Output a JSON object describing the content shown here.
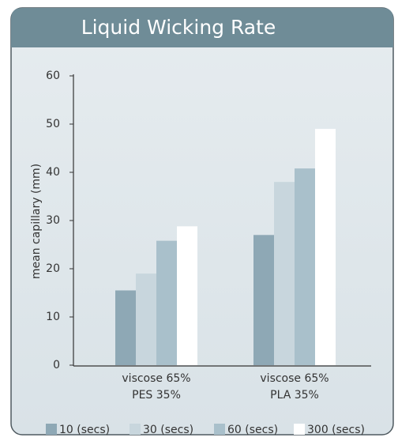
{
  "chart_data": {
    "type": "bar",
    "title": "Liquid Wicking Rate",
    "y_label": "mean capillary (mm)",
    "categories": [
      [
        "viscose 65%",
        "PES 35%"
      ],
      [
        "viscose 65%",
        "PLA 35%"
      ]
    ],
    "series": [
      {
        "name": "10 (secs)",
        "color": "#8ea8b5",
        "values": [
          15.5,
          27
        ]
      },
      {
        "name": "30 (secs)",
        "color": "#c8d6dd",
        "values": [
          19,
          38
        ]
      },
      {
        "name": "60 (secs)",
        "color": "#a9c0cb",
        "values": [
          25.8,
          40.8
        ]
      },
      {
        "name": "300 (secs)",
        "color": "#ffffff",
        "values": [
          28.8,
          49
        ]
      }
    ],
    "ylim": [
      0,
      60
    ],
    "yticks": [
      0,
      10,
      20,
      30,
      40,
      50,
      60
    ],
    "grid": false,
    "legend": "bottom"
  }
}
